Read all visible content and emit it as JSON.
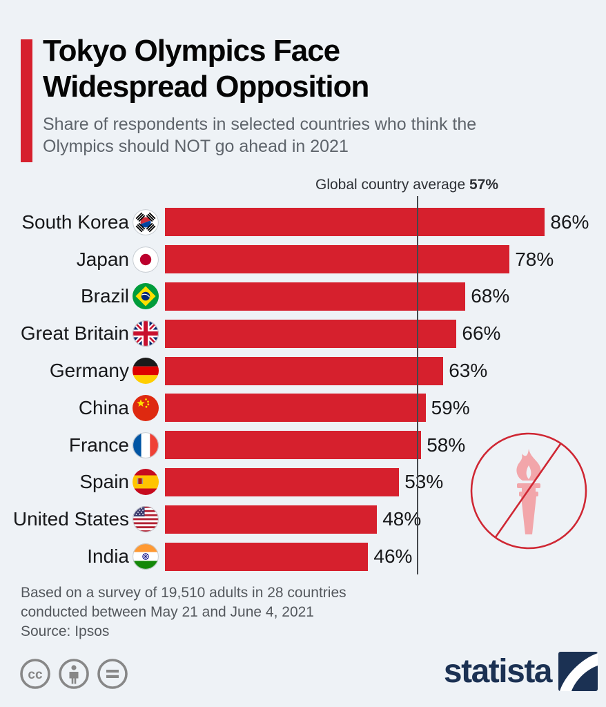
{
  "header": {
    "title": "Tokyo Olympics Face Widespread Opposition",
    "subtitle": "Share of respondents in selected countries who think the Olympics should NOT go ahead in 2021"
  },
  "chart_data": {
    "type": "bar",
    "orientation": "horizontal",
    "title": "Share of respondents in selected countries who think the Olympics should NOT go ahead in 2021",
    "categories": [
      "South Korea",
      "Japan",
      "Brazil",
      "Great Britain",
      "Germany",
      "China",
      "France",
      "Spain",
      "United States",
      "India"
    ],
    "values": [
      86,
      78,
      68,
      66,
      63,
      59,
      58,
      53,
      48,
      46
    ],
    "unit": "%",
    "xlim": [
      0,
      100
    ],
    "bar_color": "#d6202d",
    "average_line": {
      "label": "Global country average",
      "value": 57,
      "display": "57%"
    },
    "rows": [
      {
        "country": "South Korea",
        "value": 86,
        "display": "86%",
        "flag": "south-korea"
      },
      {
        "country": "Japan",
        "value": 78,
        "display": "78%",
        "flag": "japan"
      },
      {
        "country": "Brazil",
        "value": 68,
        "display": "68%",
        "flag": "brazil"
      },
      {
        "country": "Great Britain",
        "value": 66,
        "display": "66%",
        "flag": "great-britain"
      },
      {
        "country": "Germany",
        "value": 63,
        "display": "63%",
        "flag": "germany"
      },
      {
        "country": "China",
        "value": 59,
        "display": "59%",
        "flag": "china"
      },
      {
        "country": "France",
        "value": 58,
        "display": "58%",
        "flag": "france"
      },
      {
        "country": "Spain",
        "value": 53,
        "display": "53%",
        "flag": "spain"
      },
      {
        "country": "United States",
        "value": 48,
        "display": "48%",
        "flag": "united-states"
      },
      {
        "country": "India",
        "value": 46,
        "display": "46%",
        "flag": "india"
      }
    ]
  },
  "footer": {
    "note_lines": [
      "Based on a survey of 19,510 adults in 28 countries",
      "conducted between May 21 and June 4, 2021"
    ],
    "source": "Source: Ipsos"
  },
  "branding": {
    "logo_text": "statista"
  },
  "license": {
    "icons": [
      "cc-icon",
      "attribution-icon",
      "equals-icon"
    ]
  },
  "colors": {
    "background": "#eef2f6",
    "accent_red": "#d6202d",
    "line_dark": "#45484c",
    "navy": "#1b3153",
    "torch_pink": "#f2a6aa",
    "text_gray": "#5e646b"
  }
}
